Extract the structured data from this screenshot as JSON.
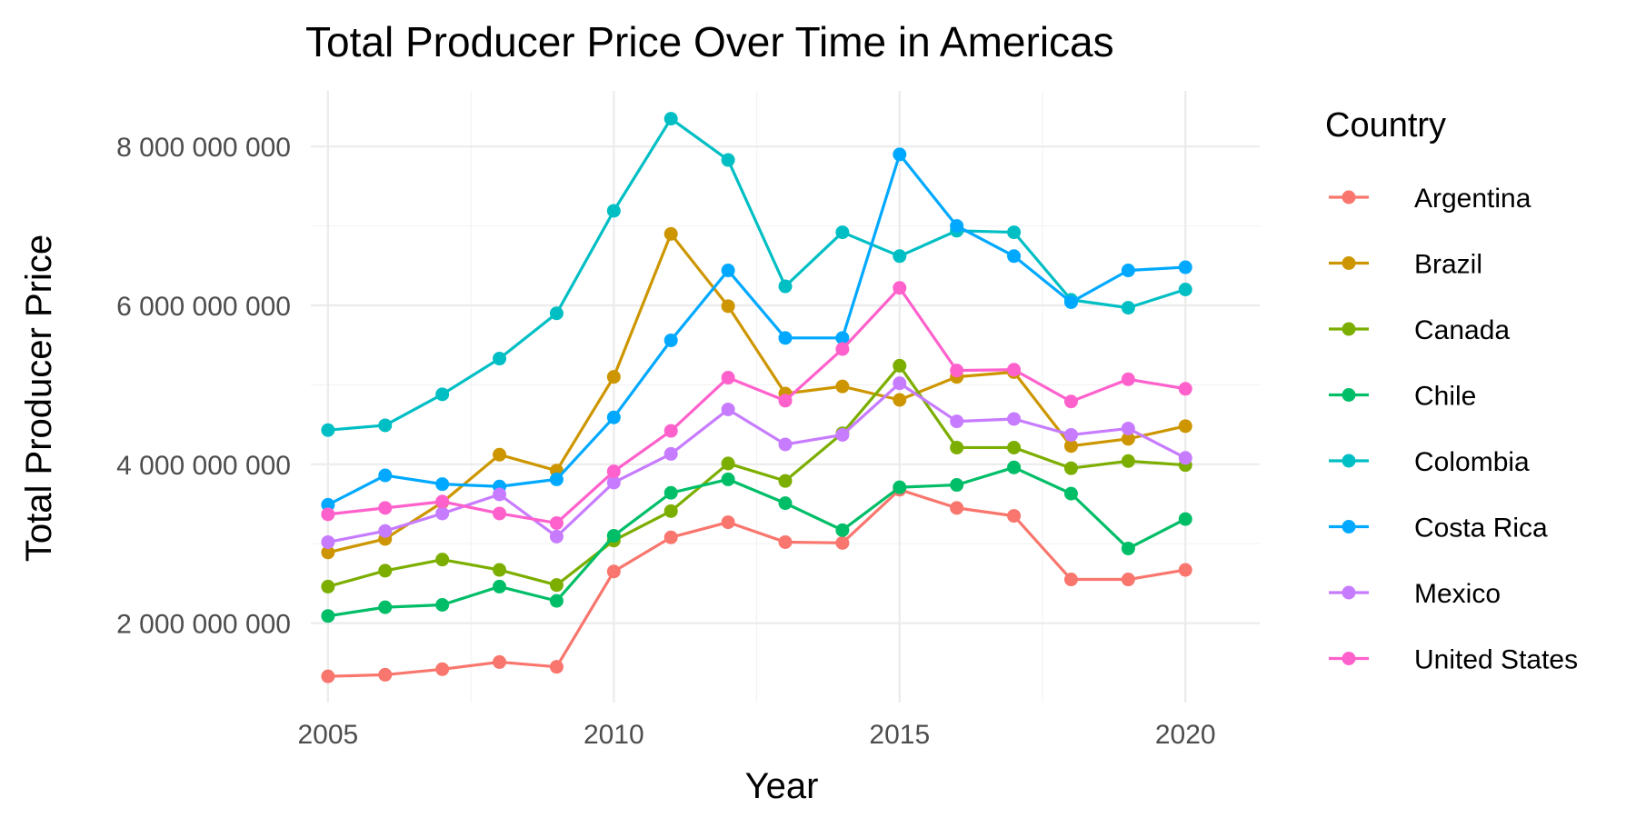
{
  "chart_data": {
    "type": "line",
    "title": "Total Producer Price Over Time in Americas",
    "xlabel": "Year",
    "ylabel": "Total Producer Price",
    "x": [
      2005,
      2006,
      2007,
      2008,
      2009,
      2010,
      2011,
      2012,
      2013,
      2014,
      2015,
      2016,
      2017,
      2018,
      2019,
      2020
    ],
    "xlim": [
      2004.7,
      2021.3
    ],
    "ylim": [
      1000000000,
      8700000000
    ],
    "x_ticks": [
      2005,
      2010,
      2015,
      2020
    ],
    "x_tick_labels": [
      "2005",
      "2010",
      "2015",
      "2020"
    ],
    "y_ticks": [
      2000000000,
      4000000000,
      6000000000,
      8000000000
    ],
    "y_tick_labels": [
      "2 000 000 000",
      "4 000 000 000",
      "6 000 000 000",
      "8 000 000 000"
    ],
    "grid": true,
    "legend": {
      "title": "Country",
      "placement": "right"
    },
    "series": [
      {
        "name": "Argentina",
        "color": "#F8766D",
        "values": [
          1330000000,
          1350000000,
          1420000000,
          1510000000,
          1450000000,
          2650000000,
          3080000000,
          3270000000,
          3020000000,
          3010000000,
          3680000000,
          3450000000,
          3350000000,
          2550000000,
          2550000000,
          2670000000
        ]
      },
      {
        "name": "Brazil",
        "color": "#CD9600",
        "values": [
          2890000000,
          3060000000,
          3520000000,
          4120000000,
          3920000000,
          5100000000,
          6900000000,
          5990000000,
          4890000000,
          4980000000,
          4810000000,
          5100000000,
          5160000000,
          4230000000,
          4320000000,
          4480000000
        ]
      },
      {
        "name": "Canada",
        "color": "#7CAE00",
        "values": [
          2460000000,
          2660000000,
          2800000000,
          2670000000,
          2480000000,
          3040000000,
          3410000000,
          4010000000,
          3790000000,
          4390000000,
          5240000000,
          4210000000,
          4210000000,
          3950000000,
          4040000000,
          3990000000
        ]
      },
      {
        "name": "Chile",
        "color": "#00BE67",
        "values": [
          2090000000,
          2200000000,
          2230000000,
          2460000000,
          2280000000,
          3100000000,
          3640000000,
          3810000000,
          3510000000,
          3170000000,
          3710000000,
          3740000000,
          3960000000,
          3630000000,
          2940000000,
          3310000000
        ]
      },
      {
        "name": "Colombia",
        "color": "#00BFC4",
        "values": [
          4430000000,
          4490000000,
          4880000000,
          5330000000,
          5900000000,
          7190000000,
          8350000000,
          7830000000,
          6240000000,
          6920000000,
          6620000000,
          6940000000,
          6920000000,
          6070000000,
          5970000000,
          6200000000
        ]
      },
      {
        "name": "Costa Rica",
        "color": "#00A9FF",
        "values": [
          3490000000,
          3860000000,
          3750000000,
          3720000000,
          3810000000,
          4590000000,
          5560000000,
          6440000000,
          5590000000,
          5590000000,
          7900000000,
          7000000000,
          6620000000,
          6040000000,
          6440000000,
          6480000000
        ]
      },
      {
        "name": "Mexico",
        "color": "#C77CFF",
        "values": [
          3020000000,
          3160000000,
          3380000000,
          3620000000,
          3090000000,
          3770000000,
          4130000000,
          4690000000,
          4250000000,
          4370000000,
          5020000000,
          4540000000,
          4570000000,
          4370000000,
          4450000000,
          4080000000
        ]
      },
      {
        "name": "United States",
        "color": "#FF61CC",
        "values": [
          3370000000,
          3450000000,
          3530000000,
          3380000000,
          3260000000,
          3910000000,
          4420000000,
          5090000000,
          4800000000,
          5450000000,
          6220000000,
          5180000000,
          5190000000,
          4790000000,
          5070000000,
          4950000000
        ]
      }
    ]
  }
}
